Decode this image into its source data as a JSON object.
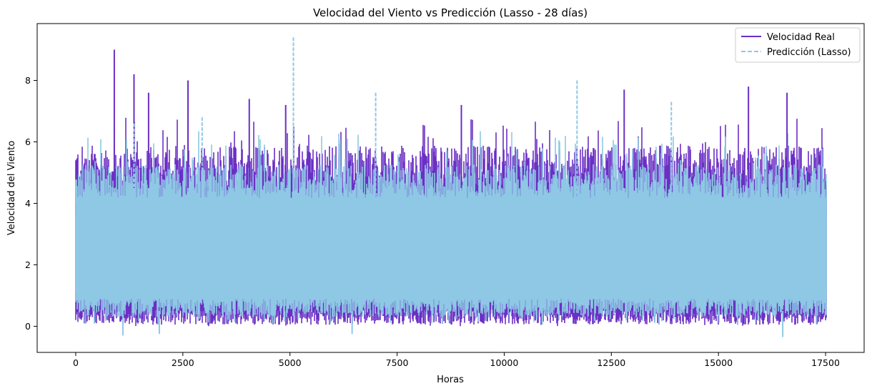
{
  "chart_data": {
    "type": "line",
    "title": "Velocidad del Viento vs Predicción (Lasso - 28 días)",
    "xlabel": "Horas",
    "ylabel": "Velocidad del Viento",
    "xlim": [
      -900,
      18400
    ],
    "ylim": [
      -0.85,
      9.85
    ],
    "xticks": [
      0,
      2500,
      5000,
      7500,
      10000,
      12500,
      15000,
      17500
    ],
    "xtick_labels": [
      "0",
      "2500",
      "5000",
      "7500",
      "10000",
      "12500",
      "15000",
      "17500"
    ],
    "yticks": [
      0,
      2,
      4,
      6,
      8
    ],
    "ytick_labels": [
      "0",
      "2",
      "4",
      "6",
      "8"
    ],
    "grid": false,
    "legend_position": "top-right",
    "x_range": [
      0,
      17520
    ],
    "series": [
      {
        "name": "Velocidad Real",
        "color": "#6a2fc4",
        "style": "solid",
        "band_typical": [
          0.3,
          4.9
        ],
        "peaks": [
          {
            "x": 900,
            "y": 9.0
          },
          {
            "x": 1360,
            "y": 8.2
          },
          {
            "x": 1700,
            "y": 7.6
          },
          {
            "x": 2620,
            "y": 8.0
          },
          {
            "x": 4050,
            "y": 7.4
          },
          {
            "x": 4900,
            "y": 7.2
          },
          {
            "x": 9000,
            "y": 7.2
          },
          {
            "x": 12800,
            "y": 7.7
          },
          {
            "x": 15700,
            "y": 7.8
          },
          {
            "x": 16600,
            "y": 7.6
          }
        ]
      },
      {
        "name": "Predicción (Lasso)",
        "color": "#8ec8e5",
        "style": "dashed",
        "band_typical": [
          0.6,
          4.5
        ],
        "peaks": [
          {
            "x": 5080,
            "y": 9.4
          },
          {
            "x": 7000,
            "y": 7.6
          },
          {
            "x": 11700,
            "y": 8.0
          },
          {
            "x": 13900,
            "y": 7.3
          },
          {
            "x": 1360,
            "y": 6.6
          },
          {
            "x": 2950,
            "y": 6.8
          }
        ],
        "troughs": [
          {
            "x": 1100,
            "y": -0.3
          },
          {
            "x": 16500,
            "y": -0.35
          },
          {
            "x": 6450,
            "y": -0.25
          },
          {
            "x": 1950,
            "y": -0.25
          }
        ]
      }
    ]
  }
}
